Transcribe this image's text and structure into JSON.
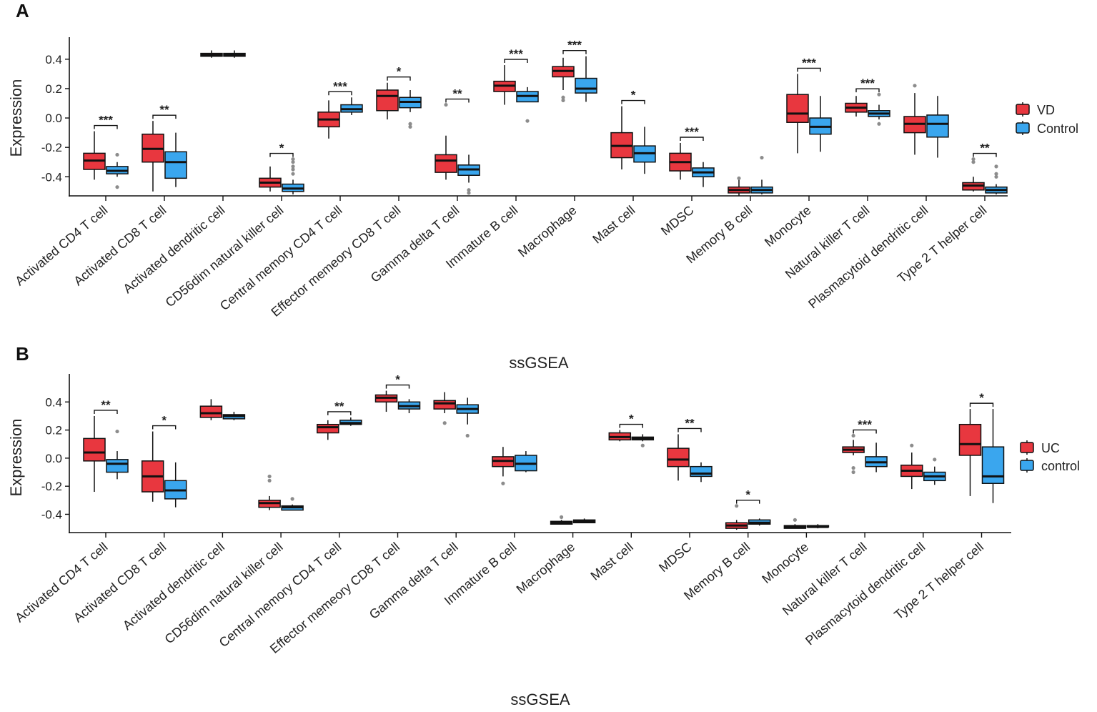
{
  "colors": {
    "group1": "#e8373f",
    "group2": "#3aa6ee",
    "outlier": "#8c8c8c",
    "ink": "#111111"
  },
  "chart_data": [
    {
      "type": "box",
      "panel": "A",
      "xlabel": "ssGSEA",
      "ylabel": "Expression",
      "ylim": [
        -0.53,
        0.55
      ],
      "yticks": [
        -0.4,
        -0.2,
        0.0,
        0.2,
        0.4
      ],
      "ytick_labels": [
        "-0.4",
        "-0.2",
        "0.0",
        "0.2",
        "0.4"
      ],
      "groups": [
        "VD",
        "Control"
      ],
      "categories": [
        "Activated CD4 T cell",
        "Activated CD8 T cell",
        "Activated dendritic cell",
        "CD56dim natural killer cell",
        "Central memory CD4 T cell",
        "Effector memeory CD8 T cell",
        "Gamma delta T cell",
        "Immature B cell",
        "Macrophage",
        "Mast cell",
        "MDSC",
        "Memory B cell",
        "Monocyte",
        "Natural killer T cell",
        "Plasmacytoid dendritic cell",
        "Type 2 T helper cell"
      ],
      "boxes": [
        [
          {
            "min": -0.42,
            "q1": -0.35,
            "median": -0.29,
            "q3": -0.24,
            "max": -0.09,
            "outliers": []
          },
          {
            "min": -0.4,
            "q1": -0.38,
            "median": -0.36,
            "q3": -0.33,
            "max": -0.3,
            "outliers": [
              -0.47,
              -0.25
            ]
          }
        ],
        [
          {
            "min": -0.5,
            "q1": -0.3,
            "median": -0.21,
            "q3": -0.11,
            "max": -0.02,
            "outliers": []
          },
          {
            "min": -0.47,
            "q1": -0.41,
            "median": -0.3,
            "q3": -0.23,
            "max": -0.1,
            "outliers": []
          }
        ],
        [
          {
            "min": 0.41,
            "q1": 0.42,
            "median": 0.43,
            "q3": 0.44,
            "max": 0.46,
            "outliers": []
          },
          {
            "min": 0.41,
            "q1": 0.42,
            "median": 0.43,
            "q3": 0.44,
            "max": 0.46,
            "outliers": []
          }
        ],
        [
          {
            "min": -0.5,
            "q1": -0.47,
            "median": -0.44,
            "q3": -0.41,
            "max": -0.33,
            "outliers": []
          },
          {
            "min": -0.52,
            "q1": -0.5,
            "median": -0.48,
            "q3": -0.45,
            "max": -0.42,
            "outliers": [
              -0.38,
              -0.35,
              -0.33,
              -0.3,
              -0.28
            ]
          }
        ],
        [
          {
            "min": -0.14,
            "q1": -0.06,
            "median": -0.01,
            "q3": 0.04,
            "max": 0.12,
            "outliers": []
          },
          {
            "min": 0.02,
            "q1": 0.04,
            "median": 0.06,
            "q3": 0.09,
            "max": 0.14,
            "outliers": []
          }
        ],
        [
          {
            "min": -0.01,
            "q1": 0.05,
            "median": 0.15,
            "q3": 0.19,
            "max": 0.24,
            "outliers": []
          },
          {
            "min": 0.04,
            "q1": 0.07,
            "median": 0.11,
            "q3": 0.14,
            "max": 0.19,
            "outliers": [
              -0.04,
              -0.06
            ]
          }
        ],
        [
          {
            "min": -0.42,
            "q1": -0.37,
            "median": -0.29,
            "q3": -0.25,
            "max": -0.12,
            "outliers": [
              0.09
            ]
          },
          {
            "min": -0.44,
            "q1": -0.39,
            "median": -0.35,
            "q3": -0.32,
            "max": -0.25,
            "outliers": [
              -0.49,
              -0.51
            ]
          }
        ],
        [
          {
            "min": 0.09,
            "q1": 0.18,
            "median": 0.22,
            "q3": 0.25,
            "max": 0.36,
            "outliers": []
          },
          {
            "min": 0.11,
            "q1": 0.11,
            "median": 0.15,
            "q3": 0.18,
            "max": 0.21,
            "outliers": [
              -0.02
            ]
          }
        ],
        [
          {
            "min": 0.19,
            "q1": 0.28,
            "median": 0.32,
            "q3": 0.35,
            "max": 0.41,
            "outliers": [
              0.12,
              0.14
            ]
          },
          {
            "min": 0.11,
            "q1": 0.17,
            "median": 0.2,
            "q3": 0.27,
            "max": 0.42,
            "outliers": []
          }
        ],
        [
          {
            "min": -0.35,
            "q1": -0.27,
            "median": -0.19,
            "q3": -0.1,
            "max": 0.08,
            "outliers": []
          },
          {
            "min": -0.38,
            "q1": -0.3,
            "median": -0.24,
            "q3": -0.19,
            "max": -0.06,
            "outliers": []
          }
        ],
        [
          {
            "min": -0.42,
            "q1": -0.36,
            "median": -0.3,
            "q3": -0.24,
            "max": -0.17,
            "outliers": []
          },
          {
            "min": -0.47,
            "q1": -0.4,
            "median": -0.37,
            "q3": -0.34,
            "max": -0.3,
            "outliers": []
          }
        ],
        [
          {
            "min": -0.53,
            "q1": -0.51,
            "median": -0.49,
            "q3": -0.47,
            "max": -0.42,
            "outliers": [
              -0.41
            ]
          },
          {
            "min": -0.52,
            "q1": -0.51,
            "median": -0.49,
            "q3": -0.47,
            "max": -0.42,
            "outliers": [
              -0.27
            ]
          }
        ],
        [
          {
            "min": -0.24,
            "q1": -0.03,
            "median": 0.03,
            "q3": 0.16,
            "max": 0.3,
            "outliers": []
          },
          {
            "min": -0.23,
            "q1": -0.11,
            "median": -0.06,
            "q3": 0.0,
            "max": 0.15,
            "outliers": []
          }
        ],
        [
          {
            "min": 0.01,
            "q1": 0.04,
            "median": 0.07,
            "q3": 0.1,
            "max": 0.15,
            "outliers": []
          },
          {
            "min": -0.01,
            "q1": 0.01,
            "median": 0.03,
            "q3": 0.05,
            "max": 0.09,
            "outliers": [
              0.16,
              -0.04
            ]
          }
        ],
        [
          {
            "min": -0.25,
            "q1": -0.1,
            "median": -0.04,
            "q3": 0.01,
            "max": 0.17,
            "outliers": [
              0.22
            ]
          },
          {
            "min": -0.27,
            "q1": -0.13,
            "median": -0.04,
            "q3": 0.02,
            "max": 0.15,
            "outliers": []
          }
        ],
        [
          {
            "min": -0.5,
            "q1": -0.49,
            "median": -0.46,
            "q3": -0.44,
            "max": -0.4,
            "outliers": [
              -0.28,
              -0.3
            ]
          },
          {
            "min": -0.52,
            "q1": -0.51,
            "median": -0.49,
            "q3": -0.47,
            "max": -0.45,
            "outliers": [
              -0.33,
              -0.38,
              -0.4
            ]
          }
        ]
      ],
      "significance": [
        "***",
        "**",
        "",
        "*",
        "***",
        "*",
        "**",
        "***",
        "***",
        "*",
        "***",
        "",
        "***",
        "***",
        "",
        "**"
      ]
    },
    {
      "type": "box",
      "panel": "B",
      "xlabel": "ssGSEA",
      "ylabel": "Expression",
      "ylim": [
        -0.53,
        0.6
      ],
      "yticks": [
        -0.4,
        -0.2,
        0.0,
        0.2,
        0.4
      ],
      "ytick_labels": [
        "-0.4",
        "-0.2",
        "0.0",
        "0.2",
        "0.4"
      ],
      "groups": [
        "UC",
        "control"
      ],
      "categories": [
        "Activated CD4 T cell",
        "Activated CD8 T cell",
        "Activated dendritic cell",
        "CD56dim natural killer cell",
        "Central memory CD4 T cell",
        "Effector memeory CD8 T cell",
        "Gamma delta T cell",
        "Immature B cell",
        "Macrophage",
        "Mast cell",
        "MDSC",
        "Memory B cell",
        "Monocyte",
        "Natural killer T cell",
        "Plasmacytoid dendritic cell",
        "Type 2 T helper cell"
      ],
      "boxes": [
        [
          {
            "min": -0.24,
            "q1": -0.02,
            "median": 0.04,
            "q3": 0.14,
            "max": 0.3,
            "outliers": []
          },
          {
            "min": -0.15,
            "q1": -0.1,
            "median": -0.04,
            "q3": -0.01,
            "max": 0.05,
            "outliers": [
              0.19
            ]
          }
        ],
        [
          {
            "min": -0.31,
            "q1": -0.24,
            "median": -0.13,
            "q3": -0.02,
            "max": 0.19,
            "outliers": []
          },
          {
            "min": -0.35,
            "q1": -0.29,
            "median": -0.23,
            "q3": -0.16,
            "max": -0.03,
            "outliers": []
          }
        ],
        [
          {
            "min": 0.27,
            "q1": 0.29,
            "median": 0.32,
            "q3": 0.37,
            "max": 0.42,
            "outliers": []
          },
          {
            "min": 0.27,
            "q1": 0.28,
            "median": 0.3,
            "q3": 0.31,
            "max": 0.33,
            "outliers": []
          }
        ],
        [
          {
            "min": -0.37,
            "q1": -0.35,
            "median": -0.32,
            "q3": -0.3,
            "max": -0.27,
            "outliers": [
              -0.13,
              -0.16
            ]
          },
          {
            "min": -0.37,
            "q1": -0.37,
            "median": -0.35,
            "q3": -0.34,
            "max": -0.33,
            "outliers": [
              -0.29
            ]
          }
        ],
        [
          {
            "min": 0.13,
            "q1": 0.18,
            "median": 0.22,
            "q3": 0.24,
            "max": 0.27,
            "outliers": []
          },
          {
            "min": 0.23,
            "q1": 0.24,
            "median": 0.25,
            "q3": 0.27,
            "max": 0.29,
            "outliers": []
          }
        ],
        [
          {
            "min": 0.33,
            "q1": 0.4,
            "median": 0.43,
            "q3": 0.45,
            "max": 0.48,
            "outliers": []
          },
          {
            "min": 0.32,
            "q1": 0.35,
            "median": 0.37,
            "q3": 0.4,
            "max": 0.42,
            "outliers": []
          }
        ],
        [
          {
            "min": 0.32,
            "q1": 0.35,
            "median": 0.39,
            "q3": 0.41,
            "max": 0.47,
            "outliers": [
              0.25
            ]
          },
          {
            "min": 0.24,
            "q1": 0.32,
            "median": 0.35,
            "q3": 0.38,
            "max": 0.43,
            "outliers": [
              0.16
            ]
          }
        ],
        [
          {
            "min": -0.13,
            "q1": -0.06,
            "median": -0.02,
            "q3": 0.01,
            "max": 0.08,
            "outliers": [
              -0.18
            ]
          },
          {
            "min": -0.1,
            "q1": -0.09,
            "median": -0.04,
            "q3": 0.02,
            "max": 0.05,
            "outliers": []
          }
        ],
        [
          {
            "min": -0.47,
            "q1": -0.47,
            "median": -0.46,
            "q3": -0.45,
            "max": -0.44,
            "outliers": [
              -0.42
            ]
          },
          {
            "min": -0.46,
            "q1": -0.46,
            "median": -0.45,
            "q3": -0.44,
            "max": -0.43,
            "outliers": []
          }
        ],
        [
          {
            "min": 0.12,
            "q1": 0.13,
            "median": 0.15,
            "q3": 0.18,
            "max": 0.2,
            "outliers": []
          },
          {
            "min": 0.12,
            "q1": 0.13,
            "median": 0.14,
            "q3": 0.15,
            "max": 0.17,
            "outliers": [
              0.09
            ]
          }
        ],
        [
          {
            "min": -0.16,
            "q1": -0.06,
            "median": -0.01,
            "q3": 0.07,
            "max": 0.17,
            "outliers": []
          },
          {
            "min": -0.17,
            "q1": -0.13,
            "median": -0.11,
            "q3": -0.06,
            "max": -0.03,
            "outliers": []
          }
        ],
        [
          {
            "min": -0.51,
            "q1": -0.5,
            "median": -0.48,
            "q3": -0.46,
            "max": -0.44,
            "outliers": [
              -0.34
            ]
          },
          {
            "min": -0.48,
            "q1": -0.47,
            "median": -0.46,
            "q3": -0.44,
            "max": -0.43,
            "outliers": []
          }
        ],
        [
          {
            "min": -0.5,
            "q1": -0.5,
            "median": -0.49,
            "q3": -0.48,
            "max": -0.47,
            "outliers": [
              -0.44
            ]
          },
          {
            "min": -0.5,
            "q1": -0.49,
            "median": -0.49,
            "q3": -0.48,
            "max": -0.47,
            "outliers": []
          }
        ],
        [
          {
            "min": 0.02,
            "q1": 0.04,
            "median": 0.06,
            "q3": 0.08,
            "max": 0.13,
            "outliers": [
              -0.07,
              -0.1,
              0.16
            ]
          },
          {
            "min": -0.1,
            "q1": -0.06,
            "median": -0.03,
            "q3": 0.01,
            "max": 0.11,
            "outliers": []
          }
        ],
        [
          {
            "min": -0.22,
            "q1": -0.13,
            "median": -0.09,
            "q3": -0.05,
            "max": 0.04,
            "outliers": [
              0.09
            ]
          },
          {
            "min": -0.19,
            "q1": -0.16,
            "median": -0.13,
            "q3": -0.1,
            "max": -0.06,
            "outliers": [
              -0.01
            ]
          }
        ],
        [
          {
            "min": -0.27,
            "q1": 0.02,
            "median": 0.1,
            "q3": 0.24,
            "max": 0.35,
            "outliers": []
          },
          {
            "min": -0.32,
            "q1": -0.18,
            "median": -0.13,
            "q3": 0.08,
            "max": 0.35,
            "outliers": []
          }
        ]
      ],
      "significance": [
        "**",
        "*",
        "",
        "",
        "**",
        "*",
        "",
        "",
        "",
        "*",
        "**",
        "*",
        "",
        "***",
        "",
        "*"
      ]
    }
  ]
}
